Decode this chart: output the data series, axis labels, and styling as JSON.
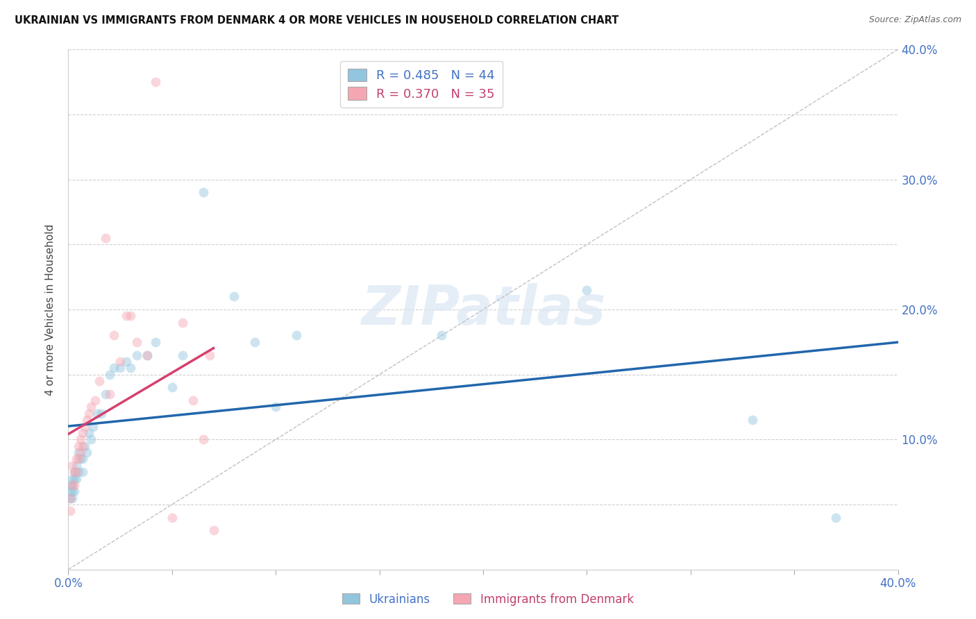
{
  "title": "UKRAINIAN VS IMMIGRANTS FROM DENMARK 4 OR MORE VEHICLES IN HOUSEHOLD CORRELATION CHART",
  "source": "Source: ZipAtlas.com",
  "ylabel": "4 or more Vehicles in Household",
  "xlim": [
    0.0,
    0.4
  ],
  "ylim": [
    0.0,
    0.4
  ],
  "x_ticks": [
    0.0,
    0.05,
    0.1,
    0.15,
    0.2,
    0.25,
    0.3,
    0.35,
    0.4
  ],
  "y_ticks": [
    0.0,
    0.05,
    0.1,
    0.15,
    0.2,
    0.25,
    0.3,
    0.35,
    0.4
  ],
  "ukrainians_color": "#92c5de",
  "denmark_color": "#f4a6b2",
  "trendline_blue_color": "#2166ac",
  "trendline_pink_color": "#d63f6c",
  "diagonal_color": "#c0c0c0",
  "legend_blue_label": "R = 0.485   N = 44",
  "legend_pink_label": "R = 0.370   N = 35",
  "ukrainians_x": [
    0.001,
    0.001,
    0.001,
    0.002,
    0.002,
    0.002,
    0.002,
    0.003,
    0.003,
    0.003,
    0.004,
    0.004,
    0.005,
    0.005,
    0.006,
    0.007,
    0.007,
    0.008,
    0.009,
    0.01,
    0.011,
    0.012,
    0.014,
    0.016,
    0.018,
    0.02,
    0.022,
    0.025,
    0.028,
    0.03,
    0.033,
    0.038,
    0.042,
    0.05,
    0.055,
    0.065,
    0.08,
    0.09,
    0.1,
    0.11,
    0.18,
    0.25,
    0.33,
    0.37
  ],
  "ukrainians_y": [
    0.06,
    0.065,
    0.055,
    0.07,
    0.065,
    0.06,
    0.055,
    0.075,
    0.06,
    0.07,
    0.08,
    0.07,
    0.09,
    0.075,
    0.085,
    0.085,
    0.075,
    0.095,
    0.09,
    0.105,
    0.1,
    0.11,
    0.12,
    0.12,
    0.135,
    0.15,
    0.155,
    0.155,
    0.16,
    0.155,
    0.165,
    0.165,
    0.175,
    0.14,
    0.165,
    0.29,
    0.21,
    0.175,
    0.125,
    0.18,
    0.18,
    0.215,
    0.115,
    0.04
  ],
  "denmark_x": [
    0.001,
    0.001,
    0.002,
    0.002,
    0.003,
    0.003,
    0.004,
    0.004,
    0.005,
    0.005,
    0.006,
    0.006,
    0.007,
    0.007,
    0.008,
    0.009,
    0.01,
    0.011,
    0.013,
    0.015,
    0.018,
    0.02,
    0.022,
    0.025,
    0.028,
    0.03,
    0.033,
    0.038,
    0.042,
    0.05,
    0.055,
    0.06,
    0.065,
    0.068,
    0.07
  ],
  "denmark_y": [
    0.055,
    0.045,
    0.065,
    0.08,
    0.075,
    0.065,
    0.085,
    0.075,
    0.095,
    0.085,
    0.09,
    0.1,
    0.095,
    0.105,
    0.11,
    0.115,
    0.12,
    0.125,
    0.13,
    0.145,
    0.255,
    0.135,
    0.18,
    0.16,
    0.195,
    0.195,
    0.175,
    0.165,
    0.375,
    0.04,
    0.19,
    0.13,
    0.1,
    0.165,
    0.03
  ],
  "watermark": "ZIPatlas",
  "background_color": "#ffffff",
  "grid_color": "#d0d0d0",
  "scatter_size": 100,
  "scatter_alpha": 0.45,
  "scatter_edgealpha": 0.7
}
